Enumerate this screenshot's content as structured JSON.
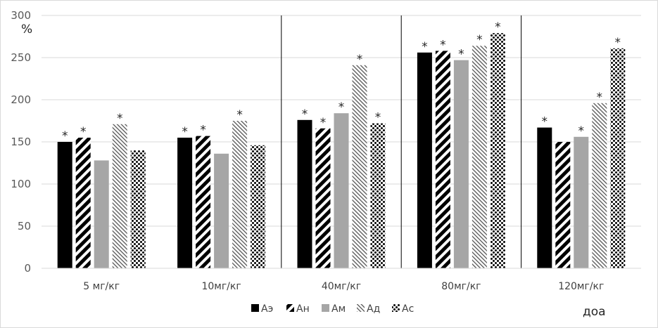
{
  "chart_data": {
    "type": "bar",
    "categories": [
      "5 мг/кг",
      "10мг/кг",
      "40мг/кг",
      "80мг/кг",
      "120мг/кг"
    ],
    "series": [
      {
        "name": "Аэ",
        "values": [
          150,
          155,
          176,
          256,
          167
        ],
        "significant": [
          true,
          true,
          true,
          true,
          true
        ]
      },
      {
        "name": "Ан",
        "values": [
          155,
          157,
          166,
          258,
          150
        ],
        "significant": [
          true,
          true,
          true,
          true,
          false
        ]
      },
      {
        "name": "Ам",
        "values": [
          128,
          136,
          184,
          247,
          156
        ],
        "significant": [
          false,
          false,
          true,
          true,
          true
        ]
      },
      {
        "name": "Ад",
        "values": [
          171,
          175,
          241,
          264,
          196
        ],
        "significant": [
          true,
          true,
          true,
          true,
          true
        ]
      },
      {
        "name": "Ас",
        "values": [
          140,
          146,
          172,
          279,
          261
        ],
        "significant": [
          false,
          false,
          true,
          true,
          true
        ]
      }
    ],
    "ylim": [
      0,
      300
    ],
    "yticks": [
      "0",
      "50",
      "100",
      "150",
      "200",
      "250",
      "300"
    ],
    "ylabel": "%",
    "significance_marker": "*",
    "xlabel": "доа",
    "grid": true,
    "legend_position": "bottom"
  }
}
